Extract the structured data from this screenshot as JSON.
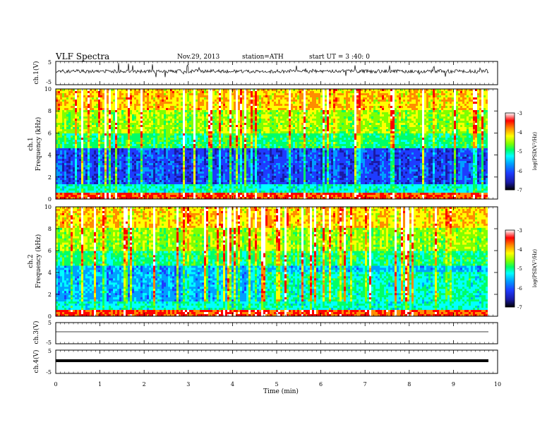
{
  "header": {
    "title": "VLF  Spectra",
    "date": "Nov.29, 2013",
    "station": "station=ATH",
    "start_ut": "start  UT  =   3  :40: 0"
  },
  "colors": {
    "colormap": [
      "#000000",
      "#1a1aa6",
      "#1e3cff",
      "#00a0ff",
      "#00ffff",
      "#00ff66",
      "#7fff00",
      "#ffff00",
      "#ff8c00",
      "#ff0000",
      "#ffffff"
    ]
  },
  "chart_data": [
    {
      "id": "ch1-waveform",
      "type": "line",
      "ylabel": "ch.1(V)",
      "ylim": [
        -5,
        5
      ],
      "yticks": [
        "5",
        "-5"
      ],
      "xlim": [
        0,
        10
      ]
    },
    {
      "id": "ch1-spectrogram",
      "type": "heatmap",
      "ylabel_channel": "ch.1",
      "ylabel": "Frequency (kHz)",
      "ylim": [
        0,
        10
      ],
      "yticks": [
        "0",
        "2",
        "4",
        "6",
        "8",
        "10"
      ],
      "xlim": [
        0,
        10
      ],
      "data_end_min": 9.8,
      "colorbar": {
        "label": "log(PSD(V²/Hz)",
        "ticks": [
          "-3",
          "-4",
          "-5",
          "-6",
          "-7"
        ],
        "range": [
          -7,
          -3
        ]
      }
    },
    {
      "id": "ch2-spectrogram",
      "type": "heatmap",
      "ylabel_channel": "ch.2",
      "ylabel": "Frequency (kHz)",
      "ylim": [
        0,
        10
      ],
      "yticks": [
        "0",
        "2",
        "4",
        "6",
        "8",
        "10"
      ],
      "xlim": [
        0,
        10
      ],
      "data_end_min": 9.8,
      "colorbar": {
        "label": "log(PSD(V²/Hz)",
        "ticks": [
          "-3",
          "-4",
          "-5",
          "-6",
          "-7"
        ],
        "range": [
          -7,
          -3
        ]
      }
    },
    {
      "id": "ch3-waveform",
      "type": "line",
      "ylabel": "ch.3(V)",
      "ylim": [
        -5,
        5
      ],
      "yticks": [
        "5",
        "-5"
      ],
      "xlim": [
        0,
        10
      ]
    },
    {
      "id": "ch4-waveform",
      "type": "line",
      "ylabel": "ch.4(V)",
      "ylim": [
        -5,
        5
      ],
      "yticks": [
        "5",
        "-5"
      ],
      "xlim": [
        0,
        10
      ]
    }
  ],
  "x_axis": {
    "label": "Time  (min)",
    "ticks": [
      "0",
      "1",
      "2",
      "3",
      "4",
      "5",
      "6",
      "7",
      "8",
      "9",
      "10"
    ]
  }
}
